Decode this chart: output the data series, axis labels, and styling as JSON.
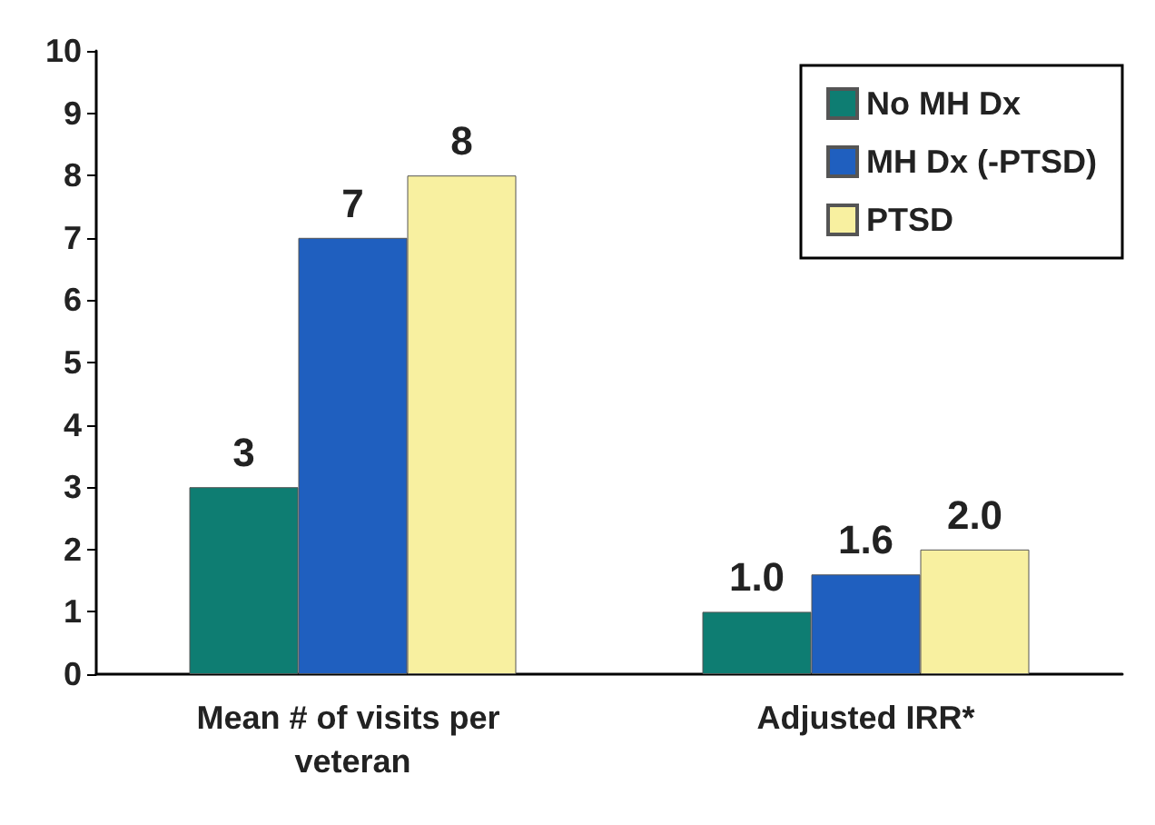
{
  "chart_data": {
    "type": "bar",
    "categories": [
      "Mean # of visits per veteran",
      "Adjusted IRR*"
    ],
    "series": [
      {
        "name": "No MH Dx",
        "color": "#0e7d72",
        "values": [
          3,
          1.0
        ],
        "value_labels": [
          "3",
          "1.0"
        ]
      },
      {
        "name": "MH Dx (-PTSD)",
        "color": "#1f5fbf",
        "values": [
          7,
          1.6
        ],
        "value_labels": [
          "7",
          "1.6"
        ]
      },
      {
        "name": "PTSD",
        "color": "#f8f0a0",
        "values": [
          8,
          2.0
        ],
        "value_labels": [
          "8",
          "2.0"
        ]
      }
    ],
    "ylim": [
      0,
      10
    ],
    "yticks": [
      0,
      1,
      2,
      3,
      4,
      5,
      6,
      7,
      8,
      9,
      10
    ],
    "grid": false,
    "legend": "top right"
  }
}
